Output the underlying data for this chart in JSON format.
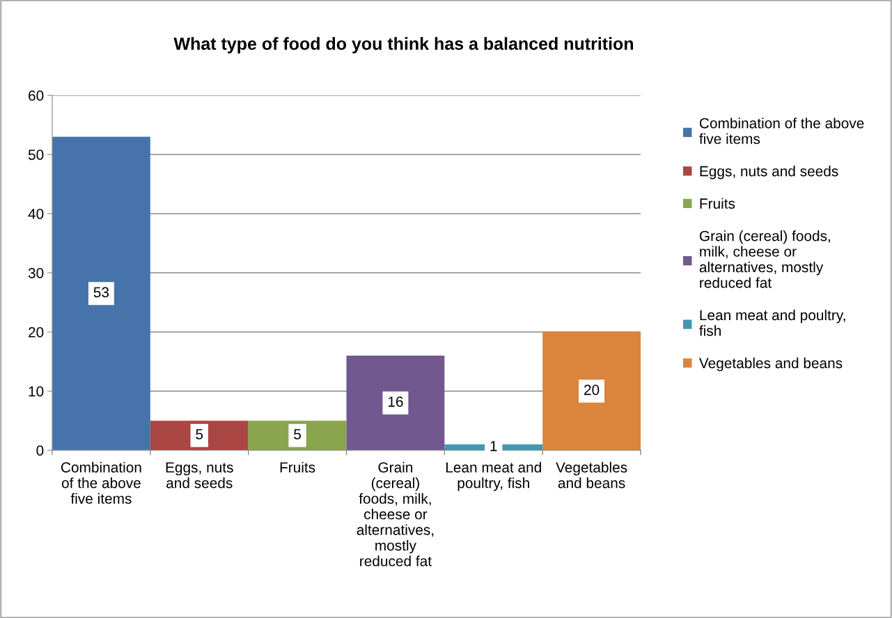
{
  "chart_data": {
    "type": "bar",
    "title": "What type of food do you think has a balanced nutrition",
    "categories": [
      "Combination of the above five items",
      "Eggs, nuts and seeds",
      "Fruits",
      "Grain (cereal) foods, milk, cheese or alternatives, mostly reduced fat",
      "Lean meat and poultry, fish",
      "Vegetables and beans"
    ],
    "series": [
      {
        "name": "Combination of the above five items",
        "color": "#4674aa",
        "values": [
          53,
          null,
          null,
          null,
          null,
          null
        ]
      },
      {
        "name": "Eggs, nuts and seeds",
        "color": "#aa4744",
        "values": [
          null,
          5,
          null,
          null,
          null,
          null
        ]
      },
      {
        "name": "Fruits",
        "color": "#89a54e",
        "values": [
          null,
          null,
          5,
          null,
          null,
          null
        ]
      },
      {
        "name": "Grain (cereal) foods, milk, cheese or alternatives, mostly reduced fat",
        "color": "#71588f",
        "values": [
          null,
          null,
          null,
          16,
          null,
          null
        ]
      },
      {
        "name": "Lean meat and poultry, fish",
        "color": "#4198af",
        "values": [
          null,
          null,
          null,
          null,
          1,
          null
        ]
      },
      {
        "name": "Vegetables and beans",
        "color": "#db843d",
        "values": [
          null,
          null,
          null,
          null,
          null,
          20
        ]
      }
    ],
    "ylim": [
      0,
      60
    ],
    "yticks": [
      0,
      10,
      20,
      30,
      40,
      50,
      60
    ],
    "grid": "y",
    "legend": "right",
    "data_labels": true
  }
}
